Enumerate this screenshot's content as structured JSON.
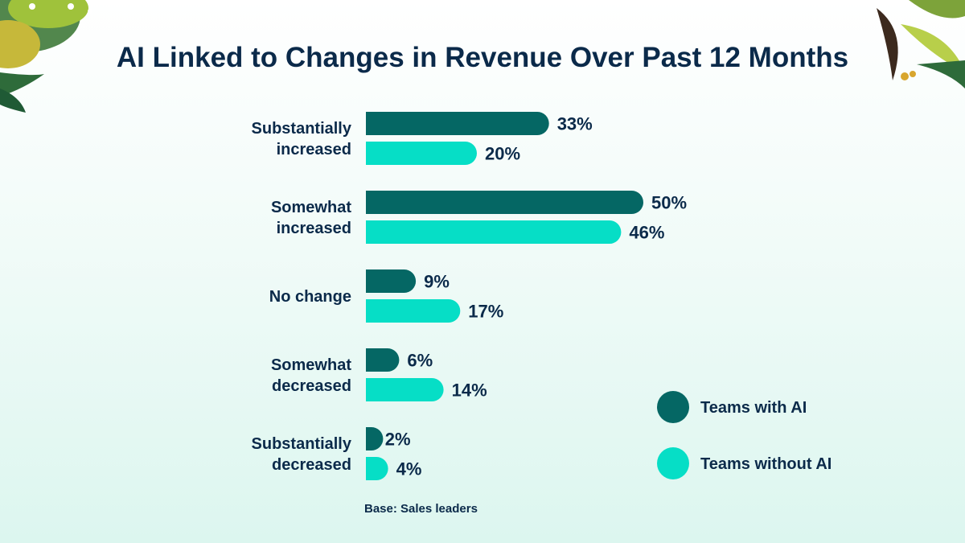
{
  "chart_data": {
    "type": "bar",
    "orientation": "horizontal",
    "title": "AI Linked to Changes in Revenue Over Past 12 Months",
    "categories": [
      [
        "Substantially",
        "increased"
      ],
      [
        "Somewhat",
        "increased"
      ],
      [
        "No change"
      ],
      [
        "Somewhat",
        "decreased"
      ],
      [
        "Substantially",
        "decreased"
      ]
    ],
    "series": [
      {
        "name": "Teams with AI",
        "color": "#056764",
        "values": [
          33,
          50,
          9,
          6,
          2
        ]
      },
      {
        "name": "Teams without AI",
        "color": "#06dec6",
        "values": [
          20,
          46,
          17,
          14,
          4
        ]
      }
    ],
    "value_suffix": "%",
    "grid": false,
    "legend": "right"
  },
  "footnote": "Base: Sales leaders"
}
